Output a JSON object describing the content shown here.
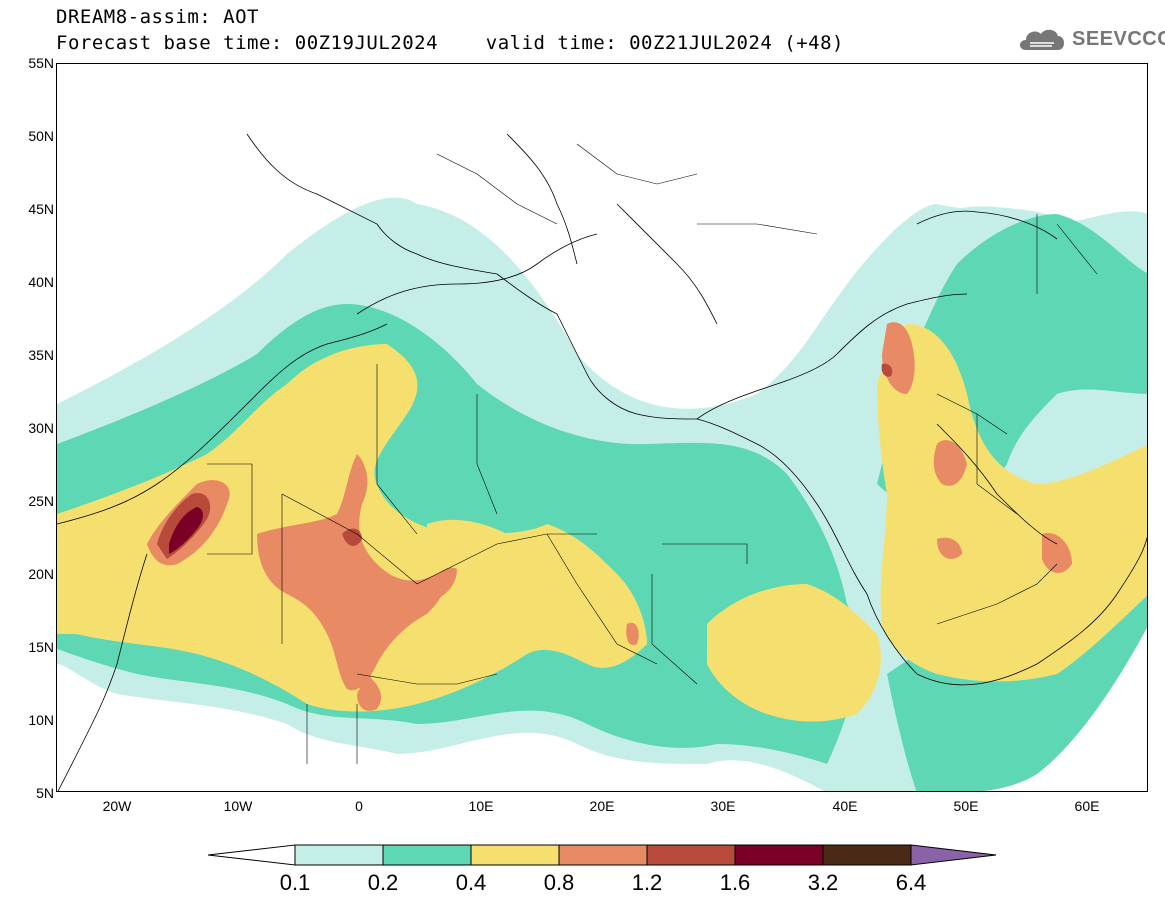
{
  "title": {
    "line1": "DREAM8-assim: AOT",
    "line2": "Forecast base time: 00Z19JUL2024    valid time: 00Z21JUL2024 (+48)"
  },
  "logo": {
    "text": "SEEVCCC",
    "icon": "cloud-icon"
  },
  "map": {
    "lat_range": [
      5,
      55
    ],
    "lon_range": [
      -25,
      65
    ],
    "lat_labels": [
      "55N",
      "50N",
      "45N",
      "40N",
      "35N",
      "30N",
      "25N",
      "20N",
      "15N",
      "10N",
      "5N"
    ],
    "lon_labels": [
      "20W",
      "10W",
      "0",
      "10E",
      "20E",
      "30E",
      "40E",
      "50E",
      "60E"
    ]
  },
  "colorbar": {
    "labels": [
      "0.1",
      "0.2",
      "0.4",
      "0.8",
      "1.2",
      "1.6",
      "3.2",
      "6.4"
    ],
    "colors": [
      "#ffffff",
      "#c6eee9",
      "#5ed8b4",
      "#f5e06f",
      "#e88a63",
      "#b84a3c",
      "#7a0026",
      "#4a2a16",
      "#8a62a8"
    ]
  }
}
